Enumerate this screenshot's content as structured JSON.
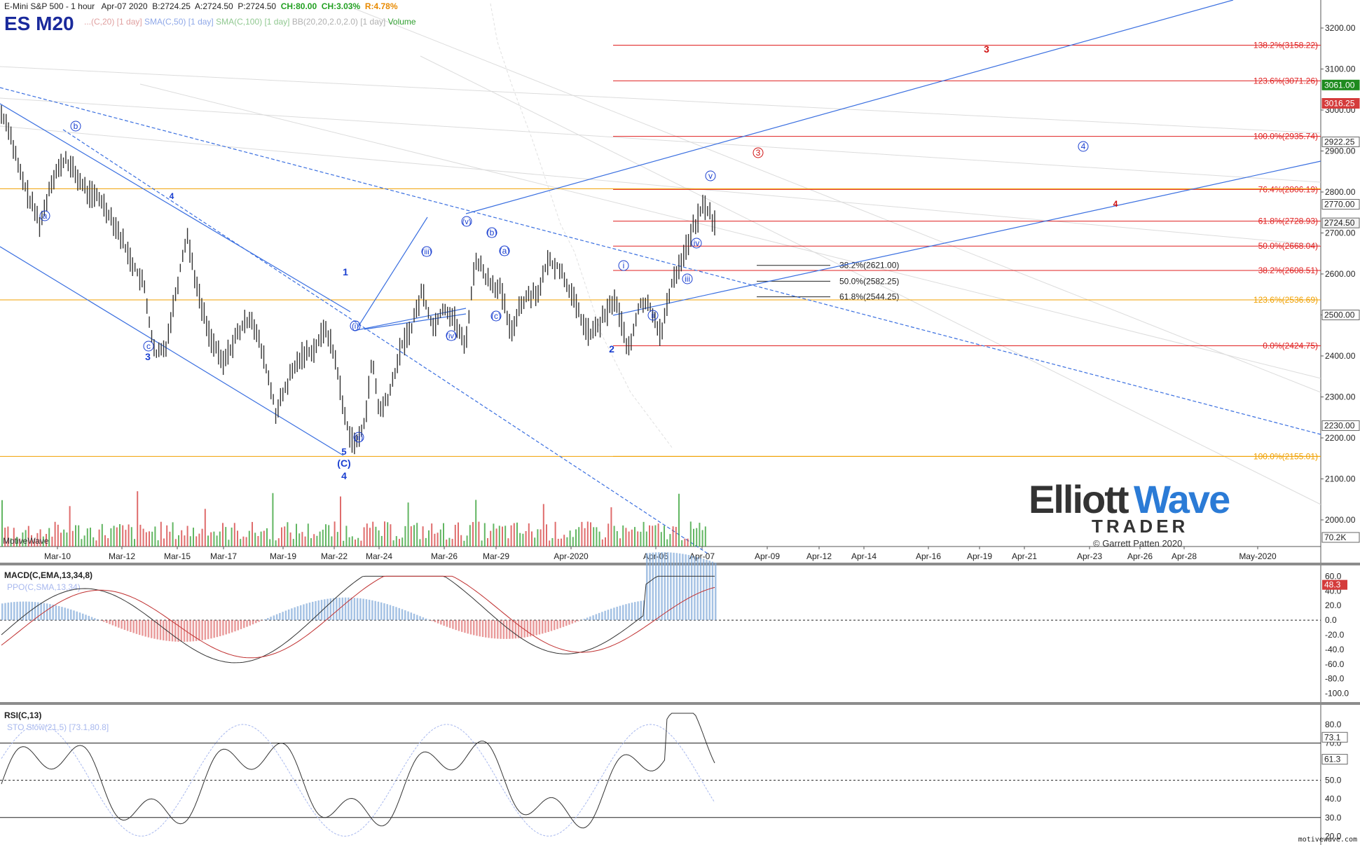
{
  "header": {
    "date": "Apr-07 2020",
    "bid": "B:2724.25",
    "ask": "A:2724.50",
    "price": "P:2724.50",
    "change": "CH:80.00",
    "change_pct": "CH:3.03%",
    "range_pct": "R:4.78%",
    "chart_title": "E-Mini S&P 500 - 1 hour",
    "symbol": "ES M20",
    "legend_sma50": "SMA(C,50) [1 day]",
    "legend_sma100": "SMA(C,100) [1 day]",
    "legend_bb": "BB(20,20,2.0,2.0) [1 day]",
    "legend_volume": "Volume",
    "legend_hidden": "...(C,20) [1 day]"
  },
  "logo": {
    "word1": "Elliott",
    "word2": "Wave",
    "word3": "TRADER",
    "copyright": "© Garrett Patten 2020"
  },
  "colors": {
    "up": "#2e9e2e",
    "down": "#d43b3b",
    "fib": "#e02020",
    "orange": "#f0a000",
    "wave_blue": "#1a3fd0",
    "wave_red": "#d01010",
    "channel": "#3a6fe0",
    "bar": "#333333"
  },
  "chart_data": [
    {
      "type": "line",
      "title": "E-Mini S&P 500 - 1 hour",
      "x_tick_labels": [
        "Mar-10",
        "Mar-12",
        "Mar-15",
        "Mar-17",
        "Mar-19",
        "Mar-22",
        "Mar-24",
        "Mar-26",
        "Mar-29",
        "Apr-2020",
        "Apr-05",
        "Apr-07",
        "Apr-09",
        "Apr-12",
        "Apr-14",
        "Apr-16",
        "Apr-19",
        "Apr-21",
        "Apr-23",
        "Apr-26",
        "Apr-28",
        "May-2020"
      ],
      "y_tick_labels": [
        "3200.00",
        "3100.00",
        "3000.00",
        "2900.00",
        "2800.00",
        "2700.00",
        "2600.00",
        "2500.00",
        "2400.00",
        "2300.00",
        "2200.00",
        "2100.00",
        "2000.00"
      ],
      "ylim": [
        1960,
        3290
      ],
      "price_path": [
        [
          0,
          2990
        ],
        [
          0.01,
          2960
        ],
        [
          0.025,
          2850
        ],
        [
          0.04,
          2780
        ],
        [
          0.055,
          2720
        ],
        [
          0.07,
          2830
        ],
        [
          0.09,
          2880
        ],
        [
          0.105,
          2840
        ],
        [
          0.12,
          2800
        ],
        [
          0.14,
          2780
        ],
        [
          0.16,
          2720
        ],
        [
          0.18,
          2640
        ],
        [
          0.2,
          2570
        ],
        [
          0.215,
          2400
        ],
        [
          0.23,
          2420
        ],
        [
          0.245,
          2560
        ],
        [
          0.26,
          2700
        ],
        [
          0.275,
          2560
        ],
        [
          0.29,
          2460
        ],
        [
          0.31,
          2380
        ],
        [
          0.33,
          2450
        ],
        [
          0.35,
          2500
        ],
        [
          0.37,
          2380
        ],
        [
          0.385,
          2260
        ],
        [
          0.405,
          2350
        ],
        [
          0.42,
          2400
        ],
        [
          0.44,
          2420
        ],
        [
          0.455,
          2470
        ],
        [
          0.47,
          2380
        ],
        [
          0.48,
          2260
        ],
        [
          0.49,
          2200
        ],
        [
          0.5,
          2185
        ],
        [
          0.51,
          2250
        ],
        [
          0.52,
          2390
        ],
        [
          0.53,
          2260
        ],
        [
          0.545,
          2310
        ],
        [
          0.56,
          2420
        ],
        [
          0.575,
          2470
        ],
        [
          0.59,
          2560
        ],
        [
          0.605,
          2470
        ],
        [
          0.62,
          2520
        ],
        [
          0.635,
          2490
        ],
        [
          0.65,
          2420
        ],
        [
          0.665,
          2640
        ],
        [
          0.68,
          2590
        ],
        [
          0.7,
          2560
        ],
        [
          0.715,
          2450
        ],
        [
          0.725,
          2520
        ],
        [
          0.74,
          2550
        ],
        [
          0.755,
          2560
        ],
        [
          0.765,
          2630
        ],
        [
          0.78,
          2620
        ],
        [
          0.795,
          2570
        ],
        [
          0.81,
          2500
        ],
        [
          0.825,
          2450
        ],
        [
          0.84,
          2480
        ],
        [
          0.86,
          2540
        ],
        [
          0.88,
          2410
        ],
        [
          0.895,
          2530
        ],
        [
          0.91,
          2520
        ],
        [
          0.925,
          2450
        ],
        [
          0.94,
          2580
        ],
        [
          0.955,
          2640
        ],
        [
          0.97,
          2710
        ],
        [
          0.985,
          2770
        ],
        [
          1.0,
          2724.5
        ]
      ],
      "price_labels": [
        {
          "value": 3061.0,
          "text": "3061.00",
          "color": "#1e8a1e"
        },
        {
          "value": 3016.25,
          "text": "3016.25",
          "color": "#d43b3b"
        },
        {
          "value": 2922.25,
          "text": "2922.25",
          "color": "#bbbbbb"
        },
        {
          "value": 2770.0,
          "text": "2770.00",
          "color": "#bbbbbb"
        },
        {
          "value": 2724.5,
          "text": "2724.50",
          "color": "#ffffff"
        },
        {
          "value": 2500.0,
          "text": "2500.00",
          "color": "#bbbbbb"
        },
        {
          "value": 2230.0,
          "text": "2230.00",
          "color": "#bbbbbb"
        }
      ],
      "fib_levels": [
        {
          "label": "138.2%(3158.22)",
          "value": 3158.22,
          "color": "#e02020"
        },
        {
          "label": "123.6%(3071.26)",
          "value": 3071.26,
          "color": "#e02020"
        },
        {
          "label": "100.0%(2935.74)",
          "value": 2935.74,
          "color": "#e02020"
        },
        {
          "label": "76.4%(2806.19)",
          "value": 2806.19,
          "color": "#e02020"
        },
        {
          "label": "61.8%(2728.93)",
          "value": 2728.93,
          "color": "#e02020"
        },
        {
          "label": "50.0%(2668.04)",
          "value": 2668.04,
          "color": "#e02020"
        },
        {
          "label": "38.2%(2608.51)",
          "value": 2608.51,
          "color": "#e02020"
        },
        {
          "label": "123.6%(2536.69)",
          "value": 2536.69,
          "color": "#f0a000"
        },
        {
          "label": "0.0%(2424.75)",
          "value": 2424.75,
          "color": "#e02020"
        },
        {
          "label": "100.0%(2155.01)",
          "value": 2155.01,
          "color": "#f0a000"
        }
      ],
      "retrace_levels": [
        {
          "label": "38.2%(2621.00)",
          "value": 2621.0
        },
        {
          "label": "50.0%(2582.25)",
          "value": 2582.25
        },
        {
          "label": "61.8%(2544.25)",
          "value": 2544.25
        }
      ],
      "wave_labels": [
        "1",
        "2",
        "3",
        "4",
        "5",
        "(C)",
        "4",
        "3",
        "4",
        "a",
        "b",
        "c",
        "(i)",
        "(ii)",
        "(iii)",
        "(iv)",
        "(v)",
        "(a)",
        "(b)",
        "(c)",
        "i",
        "ii",
        "iii",
        "iv",
        "v",
        "3",
        "4"
      ],
      "volume_label": "70.2K",
      "footer_label": "MotiveWave"
    },
    {
      "type": "line",
      "title": "MACD(C,EMA,13,34,8)",
      "legend": "PPO(C,SMA,13,34)",
      "y_tick_labels": [
        "60.0",
        "40.0",
        "20.0",
        "0.0",
        "-20.0",
        "-40.0",
        "-60.0",
        "-80.0",
        "-100.0"
      ],
      "ylim": [
        -110,
        70
      ],
      "last_value": "48.3"
    },
    {
      "type": "line",
      "title": "RSI(C,13)",
      "legend": "STO Slow(21,5) [73.1,80.8]",
      "y_tick_labels": [
        "80.0",
        "70.0",
        "60.0",
        "50.0",
        "40.0",
        "30.0",
        "20.0"
      ],
      "ylim": [
        16,
        89
      ],
      "levels": [
        70,
        50,
        30
      ],
      "last_values": [
        "73.1",
        "61.3"
      ]
    }
  ],
  "footer": {
    "brand": "motivewave.com"
  }
}
